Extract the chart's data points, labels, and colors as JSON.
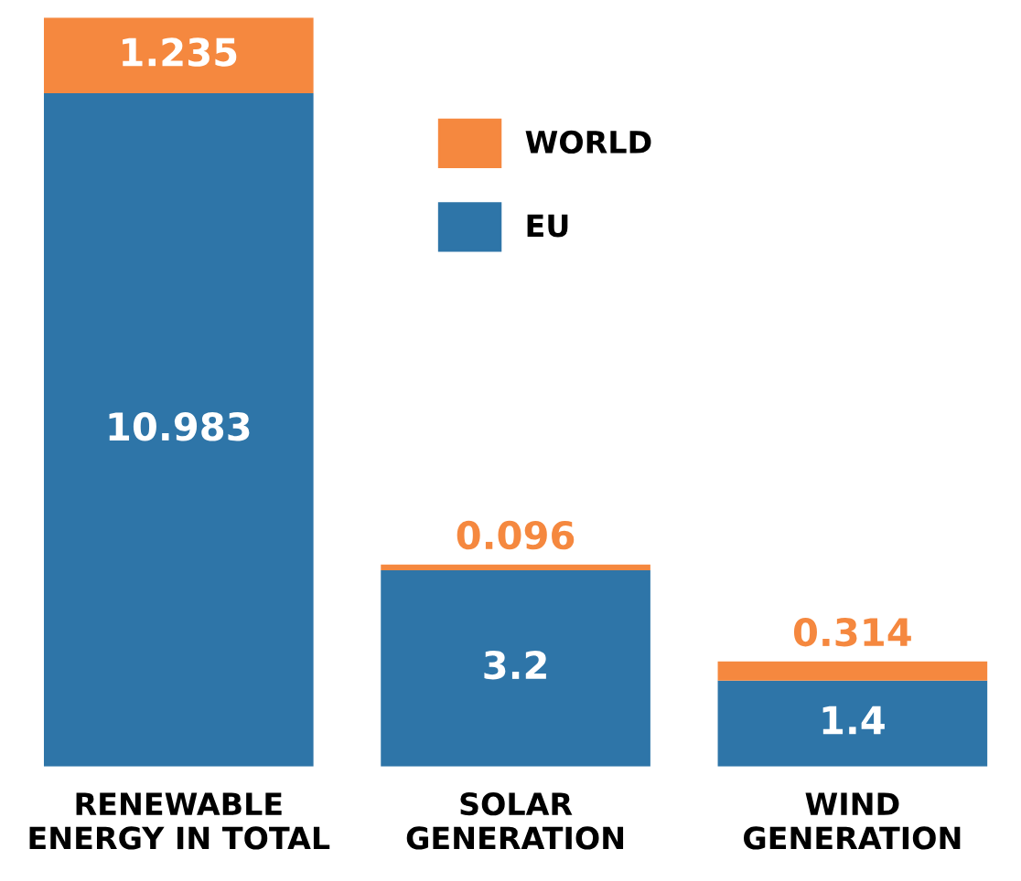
{
  "chart_data": {
    "type": "bar",
    "stacked": true,
    "data_labels": true,
    "legend": "top",
    "grid": false,
    "categories": [
      "RENEWABLE\nENERGY IN TOTAL",
      "SOLAR\nGENERATION",
      "WIND\nGENERATION"
    ],
    "series": [
      {
        "name": "EU",
        "color": "#2e75a8",
        "values": [
          10.983,
          3.2,
          1.4
        ]
      },
      {
        "name": "WORLD",
        "color": "#f5883f",
        "values": [
          1.235,
          0.096,
          0.314
        ]
      }
    ]
  }
}
